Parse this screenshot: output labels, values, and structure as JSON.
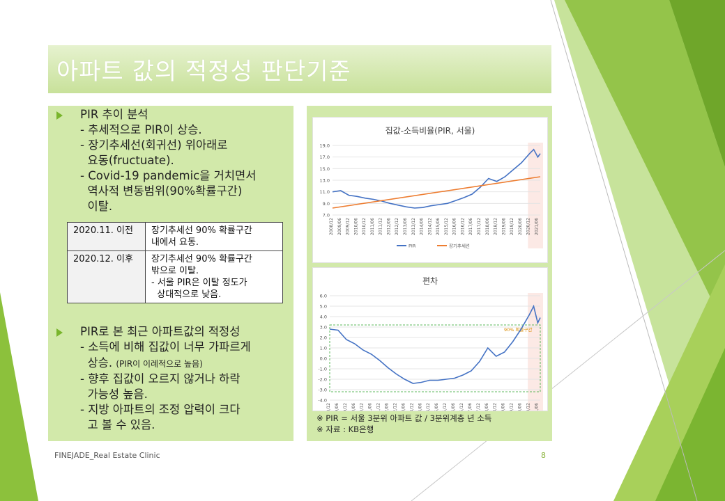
{
  "slide": {
    "title": "아파트 값의 적정성 판단기준",
    "footer": "FINEJADE_Real Estate Clinic",
    "page_number": "8"
  },
  "left": {
    "bullet1": {
      "heading": "PIR 추이 분석",
      "lines": [
        "- 추세적으로 PIR이 상승.",
        "- 장기추세선(회귀선) 위아래로",
        "  요동(fructuate).",
        "- Covid-19 pandemic을 거치면서",
        "  역사적 변동범위(90%확률구간)",
        "  이탈."
      ]
    },
    "table": [
      {
        "period": "2020.11. 이전",
        "desc": [
          "장기추세선 90% 확률구간",
          "내에서 요동."
        ]
      },
      {
        "period": "2020.12. 이후",
        "desc": [
          "장기추세선 90% 확률구간",
          "밖으로 이탈.",
          "- 서울 PIR은 이탈 정도가",
          "  상대적으로 낮음."
        ]
      }
    ],
    "bullet2": {
      "heading": "PIR로 본 최근 아파트값의 적정성",
      "lines": [
        "- 소득에 비해 집값이 너무 가파르게",
        "  상승.",
        "- 향후 집값이 오르지 않거나 하락",
        "  가능성 높음.",
        "- 지방 아파트의 조정 압력이 크다",
        "  고 볼 수 있음."
      ],
      "small_note": "(PIR이 이례적으로 높음)"
    }
  },
  "notes": [
    "※ PIR = 서울 3분위 아파트 값 / 3분위계층 년 소득",
    "※ 자료 : KB은행"
  ],
  "colors": {
    "accent": "#79b52c",
    "pir": "#4472c4",
    "trend": "#ed7d31",
    "band": "#5cb85c"
  },
  "chart_data": [
    {
      "type": "line",
      "title": "집값-소득비율(PIR, 서울)",
      "x_ticks": [
        "2008/12",
        "2009/06",
        "2009/12",
        "2010/06",
        "2010/12",
        "2011/06",
        "2011/12",
        "2012/06",
        "2012/12",
        "2013/06",
        "2013/12",
        "2014/06",
        "2014/12",
        "2015/06",
        "2015/12",
        "2016/06",
        "2016/12",
        "2017/06",
        "2017/12",
        "2018/06",
        "2018/12",
        "2019/06",
        "2019/12",
        "2020/06",
        "2020/12",
        "2021/06"
      ],
      "y_ticks": [
        "19.0",
        "17.0",
        "15.0",
        "13.0",
        "11.0",
        "9.0",
        "7.0"
      ],
      "ylim": [
        7,
        19
      ],
      "series": [
        {
          "name": "PIR",
          "x": [
            0,
            1,
            2,
            3,
            4,
            5,
            6,
            7,
            8,
            9,
            10,
            11,
            12,
            13,
            14,
            15,
            16,
            17,
            18,
            19,
            20,
            21,
            22,
            23,
            24,
            24.5,
            25,
            25.3
          ],
          "values": [
            11.0,
            11.2,
            10.4,
            10.2,
            9.9,
            9.7,
            9.4,
            9.0,
            8.7,
            8.4,
            8.2,
            8.3,
            8.6,
            8.8,
            9.0,
            9.5,
            10.0,
            10.6,
            11.8,
            13.3,
            12.8,
            13.6,
            14.8,
            16.0,
            17.6,
            18.3,
            17.0,
            17.6
          ]
        },
        {
          "name": "장기추세선",
          "x": [
            0,
            25.3
          ],
          "values": [
            8.2,
            13.6
          ]
        }
      ]
    },
    {
      "type": "line",
      "title": "편차",
      "x_ticks": [
        "2008/12",
        "2009/06",
        "2009/12",
        "2010/06",
        "2010/12",
        "2011/06",
        "2011/12",
        "2012/06",
        "2012/12",
        "2013/06",
        "2013/12",
        "2014/06",
        "2014/12",
        "2015/06",
        "2015/12",
        "2016/06",
        "2016/12",
        "2017/06",
        "2017/12",
        "2018/06",
        "2018/12",
        "2019/06",
        "2019/12",
        "2020/06",
        "2020/12",
        "2021/06"
      ],
      "y_ticks": [
        "6.0",
        "5.0",
        "4.0",
        "3.0",
        "2.0",
        "1.0",
        "0.0",
        "-1.0",
        "-2.0",
        "-3.0",
        "-4.0"
      ],
      "ylim": [
        -4,
        6
      ],
      "band": [
        -3.2,
        3.2
      ],
      "band_label": "90% 확률구간",
      "series": [
        {
          "x": [
            0,
            1,
            2,
            3,
            4,
            5,
            6,
            7,
            8,
            9,
            10,
            11,
            12,
            13,
            14,
            15,
            16,
            17,
            18,
            19,
            20,
            21,
            22,
            23,
            24,
            24.5,
            25,
            25.3
          ],
          "values": [
            2.8,
            2.7,
            1.8,
            1.4,
            0.8,
            0.4,
            -0.2,
            -0.9,
            -1.5,
            -2.0,
            -2.4,
            -2.3,
            -2.1,
            -2.1,
            -2.0,
            -1.9,
            -1.6,
            -1.2,
            -0.3,
            1.0,
            0.2,
            0.6,
            1.6,
            2.8,
            4.2,
            5.0,
            3.4,
            3.9
          ]
        }
      ]
    }
  ]
}
